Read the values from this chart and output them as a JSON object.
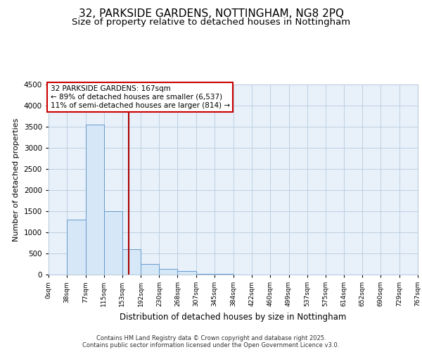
{
  "title_line1": "32, PARKSIDE GARDENS, NOTTINGHAM, NG8 2PQ",
  "title_line2": "Size of property relative to detached houses in Nottingham",
  "xlabel": "Distribution of detached houses by size in Nottingham",
  "ylabel": "Number of detached properties",
  "bin_edges": [
    0,
    38,
    77,
    115,
    153,
    192,
    230,
    268,
    307,
    345,
    384,
    422,
    460,
    499,
    537,
    575,
    614,
    652,
    690,
    729,
    767
  ],
  "bar_heights": [
    5,
    1300,
    3550,
    1500,
    600,
    250,
    130,
    80,
    25,
    10,
    5,
    3,
    2,
    1,
    1,
    1,
    0,
    0,
    0,
    0
  ],
  "bar_color": "#d6e8f7",
  "bar_edge_color": "#6699cc",
  "property_size": 167,
  "vline_color": "#aa0000",
  "annotation_text": "32 PARKSIDE GARDENS: 167sqm\n← 89% of detached houses are smaller (6,537)\n11% of semi-detached houses are larger (814) →",
  "annotation_box_color": "#ffffff",
  "annotation_border_color": "#cc0000",
  "ylim": [
    0,
    4500
  ],
  "yticks": [
    0,
    500,
    1000,
    1500,
    2000,
    2500,
    3000,
    3500,
    4000,
    4500
  ],
  "tick_labels": [
    "0sqm",
    "38sqm",
    "77sqm",
    "115sqm",
    "153sqm",
    "192sqm",
    "230sqm",
    "268sqm",
    "307sqm",
    "345sqm",
    "384sqm",
    "422sqm",
    "460sqm",
    "499sqm",
    "537sqm",
    "575sqm",
    "614sqm",
    "652sqm",
    "690sqm",
    "729sqm",
    "767sqm"
  ],
  "chart_bg_color": "#e8f0fa",
  "outer_bg_color": "#ffffff",
  "footer_text": "Contains HM Land Registry data © Crown copyright and database right 2025.\nContains public sector information licensed under the Open Government Licence v3.0.",
  "title_fontsize": 11,
  "subtitle_fontsize": 9.5,
  "grid_color": "#b8ccdd"
}
